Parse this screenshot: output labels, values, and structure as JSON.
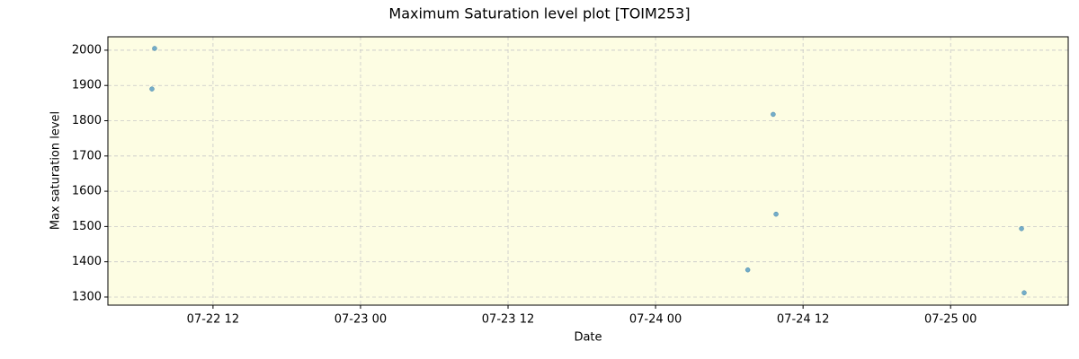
{
  "chart_data": {
    "type": "scatter",
    "title": "Maximum Saturation level plot [TOIM253]",
    "x_label": "Date",
    "y_label": "Max saturation level",
    "x": [
      "07-22 07:15",
      "07-22 07:02",
      "07-24 09:34",
      "07-24 09:48",
      "07-24 07:30",
      "07-25 05:46",
      "07-25 05:59"
    ],
    "values": [
      2005,
      1890,
      1818,
      1535,
      1377,
      1494,
      1312
    ],
    "color": "#5b9fc4",
    "xlim": [
      "07-22 03:27",
      "07-25 09:34"
    ],
    "xticks": [
      "07-22 12",
      "07-23 00",
      "07-23 12",
      "07-24 00",
      "07-24 12",
      "07-25 00"
    ],
    "ylim": [
      1277,
      2038
    ],
    "yticks": [
      1300,
      1400,
      1500,
      1600,
      1700,
      1800,
      1900,
      2000
    ],
    "grid": true,
    "background": "#fdfde3"
  }
}
